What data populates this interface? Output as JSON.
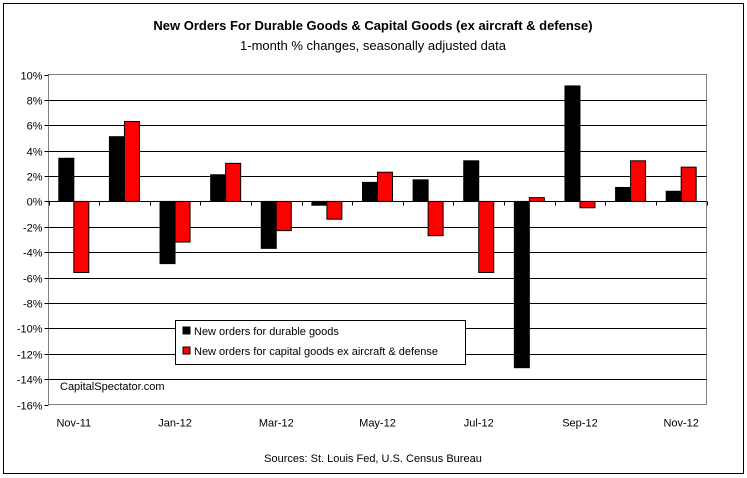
{
  "chart_data": {
    "type": "bar",
    "title": "New Orders For Durable Goods & Capital Goods (ex aircraft & defense)",
    "subtitle": "1-month % changes, seasonally adjusted data",
    "categories": [
      "Nov-11",
      "Dec-11",
      "Jan-12",
      "Feb-12",
      "Mar-12",
      "Apr-12",
      "May-12",
      "Jun-12",
      "Jul-12",
      "Aug-12",
      "Sep-12",
      "Oct-12",
      "Nov-12"
    ],
    "x_tick_labels": [
      "Nov-11",
      "",
      "Jan-12",
      "",
      "Mar-12",
      "",
      "May-12",
      "",
      "Jul-12",
      "",
      "Sep-12",
      "",
      "Nov-12"
    ],
    "series": [
      {
        "name": "New orders for durable goods",
        "color": "#000000",
        "values": [
          3.4,
          5.1,
          -4.9,
          2.1,
          -3.7,
          -0.3,
          1.5,
          1.7,
          3.2,
          -13.1,
          9.1,
          1.1,
          0.8
        ]
      },
      {
        "name": "New orders for capital goods ex aircraft & defense",
        "color": "#ff0000",
        "values": [
          -5.6,
          6.3,
          -3.2,
          3.0,
          -2.3,
          -1.4,
          2.3,
          -2.7,
          -5.6,
          0.3,
          -0.5,
          3.2,
          2.7
        ]
      }
    ],
    "ylim": [
      -16,
      10
    ],
    "y_ticks": [
      10,
      8,
      6,
      4,
      2,
      0,
      -2,
      -4,
      -6,
      -8,
      -10,
      -12,
      -14,
      -16
    ],
    "y_tick_suffix": "%",
    "grid": true,
    "legend_placement": "lower-left"
  },
  "watermark": "CapitalSpectator.com",
  "source_note": "Sources: St. Louis Fed, U.S. Census Bureau"
}
